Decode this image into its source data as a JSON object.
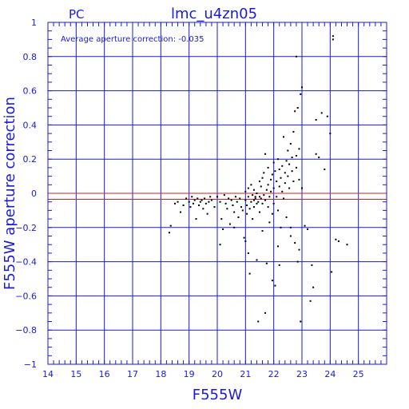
{
  "colors": {
    "axis": "#1a1adc",
    "points": "#000000",
    "zero_line": "#d02020",
    "average_line": "#d02020",
    "background": "#ffffff"
  },
  "chart_data": {
    "type": "scatter",
    "title": "lmc_u4zn05",
    "corner_label": "PC",
    "annotation": "Average aperture correction: -0.035",
    "xlabel": "F555W",
    "ylabel": "F555W aperture correction",
    "xlim": [
      14,
      26
    ],
    "ylim": [
      -1,
      1
    ],
    "x_ticks": [
      14,
      15,
      16,
      17,
      18,
      19,
      20,
      21,
      22,
      23,
      24,
      25
    ],
    "y_ticks": [
      -1,
      -0.8,
      -0.6,
      -0.4,
      -0.2,
      0,
      0.2,
      0.4,
      0.6,
      0.8,
      1
    ],
    "x_tick_labels": [
      "14",
      "15",
      "16",
      "17",
      "18",
      "19",
      "20",
      "21",
      "22",
      "23",
      "24",
      "25"
    ],
    "y_tick_labels": [
      "−1",
      "−0.8",
      "−0.6",
      "−0.4",
      "−0.2",
      "0",
      "0.2",
      "0.4",
      "0.6",
      "0.8",
      "1"
    ],
    "grid": true,
    "reference_lines": [
      {
        "y": 0,
        "style": "solid"
      },
      {
        "y": -0.035,
        "style": "solid"
      }
    ],
    "points": [
      [
        18.3,
        -0.23
      ],
      [
        18.35,
        -0.19
      ],
      [
        18.5,
        -0.06
      ],
      [
        18.6,
        -0.05
      ],
      [
        18.7,
        -0.11
      ],
      [
        18.8,
        -0.07
      ],
      [
        18.9,
        -0.03
      ],
      [
        19.0,
        -0.05
      ],
      [
        19.05,
        -0.08
      ],
      [
        19.1,
        -0.02
      ],
      [
        19.15,
        -0.06
      ],
      [
        19.2,
        -0.04
      ],
      [
        19.25,
        -0.15
      ],
      [
        19.3,
        -0.03
      ],
      [
        19.35,
        -0.07
      ],
      [
        19.4,
        -0.05
      ],
      [
        19.45,
        -0.04
      ],
      [
        19.5,
        -0.09
      ],
      [
        19.55,
        -0.03
      ],
      [
        19.6,
        -0.06
      ],
      [
        19.65,
        -0.12
      ],
      [
        19.7,
        -0.05
      ],
      [
        19.75,
        -0.02
      ],
      [
        19.8,
        -0.04
      ],
      [
        19.9,
        -0.08
      ],
      [
        20.0,
        -0.02
      ],
      [
        20.1,
        -0.05
      ],
      [
        20.15,
        -0.15
      ],
      [
        20.2,
        -0.21
      ],
      [
        20.25,
        -0.01
      ],
      [
        20.3,
        -0.06
      ],
      [
        20.35,
        -0.09
      ],
      [
        20.4,
        -0.03
      ],
      [
        20.45,
        -0.18
      ],
      [
        20.5,
        -0.04
      ],
      [
        20.55,
        -0.07
      ],
      [
        20.6,
        -0.11
      ],
      [
        20.65,
        -0.02
      ],
      [
        20.7,
        -0.05
      ],
      [
        20.75,
        -0.14
      ],
      [
        20.8,
        -0.03
      ],
      [
        20.85,
        -0.08
      ],
      [
        20.9,
        -0.1
      ],
      [
        20.95,
        -0.26
      ],
      [
        21.0,
        -0.04
      ],
      [
        21.0,
        0.01
      ],
      [
        21.05,
        -0.07
      ],
      [
        21.05,
        -0.12
      ],
      [
        21.1,
        0.03
      ],
      [
        21.1,
        -0.02
      ],
      [
        21.15,
        -0.09
      ],
      [
        21.15,
        -0.47
      ],
      [
        21.2,
        -0.05
      ],
      [
        21.2,
        0.05
      ],
      [
        21.25,
        -0.01
      ],
      [
        21.25,
        -0.15
      ],
      [
        21.3,
        -0.04
      ],
      [
        21.3,
        -0.08
      ],
      [
        21.3,
        0.02
      ],
      [
        21.35,
        -0.02
      ],
      [
        21.35,
        -0.03
      ],
      [
        21.4,
        -0.06
      ],
      [
        21.4,
        0.0
      ],
      [
        21.45,
        -0.05
      ],
      [
        21.45,
        -0.75
      ],
      [
        21.5,
        0.07
      ],
      [
        21.5,
        -0.02
      ],
      [
        21.5,
        -0.11
      ],
      [
        21.55,
        -0.03
      ],
      [
        21.55,
        0.04
      ],
      [
        21.6,
        -0.22
      ],
      [
        21.6,
        -0.06
      ],
      [
        21.6,
        0.09
      ],
      [
        21.65,
        -0.01
      ],
      [
        21.65,
        0.12
      ],
      [
        21.7,
        -0.04
      ],
      [
        21.7,
        0.23
      ],
      [
        21.75,
        -0.41
      ],
      [
        21.75,
        0.02
      ],
      [
        21.8,
        -0.08
      ],
      [
        21.8,
        0.05
      ],
      [
        21.8,
        0.15
      ],
      [
        21.85,
        -0.02
      ],
      [
        21.85,
        -0.17
      ],
      [
        21.9,
        0.08
      ],
      [
        21.9,
        0.01
      ],
      [
        21.95,
        -0.12
      ],
      [
        21.95,
        0.11
      ],
      [
        22.0,
        -0.06
      ],
      [
        22.0,
        0.03
      ],
      [
        22.0,
        0.18
      ],
      [
        22.05,
        -0.54
      ],
      [
        22.05,
        0.13
      ],
      [
        22.1,
        -0.02
      ],
      [
        22.1,
        0.07
      ],
      [
        22.15,
        0.2
      ],
      [
        22.15,
        -0.1
      ],
      [
        22.2,
        0.04
      ],
      [
        22.2,
        0.14
      ],
      [
        22.25,
        -0.2
      ],
      [
        22.25,
        0.09
      ],
      [
        22.3,
        0.01
      ],
      [
        22.3,
        0.16
      ],
      [
        22.35,
        0.33
      ],
      [
        22.35,
        -0.03
      ],
      [
        22.4,
        0.06
      ],
      [
        22.4,
        0.12
      ],
      [
        22.45,
        0.19
      ],
      [
        22.45,
        -0.14
      ],
      [
        22.5,
        0.25
      ],
      [
        22.5,
        0.1
      ],
      [
        22.55,
        0.03
      ],
      [
        22.55,
        0.17
      ],
      [
        22.6,
        0.29
      ],
      [
        22.6,
        -0.25
      ],
      [
        22.65,
        0.13
      ],
      [
        22.65,
        0.21
      ],
      [
        22.7,
        0.36
      ],
      [
        22.7,
        0.07
      ],
      [
        22.75,
        0.48
      ],
      [
        22.75,
        -0.29
      ],
      [
        22.8,
        0.22
      ],
      [
        22.8,
        0.15
      ],
      [
        22.85,
        0.5
      ],
      [
        22.85,
        -0.4
      ],
      [
        22.9,
        0.26
      ],
      [
        22.9,
        0.08
      ],
      [
        22.95,
        0.58
      ],
      [
        22.95,
        -0.75
      ],
      [
        23.0,
        0.62
      ],
      [
        23.0,
        0.03
      ],
      [
        23.1,
        -0.19
      ],
      [
        23.2,
        -0.21
      ],
      [
        23.3,
        -0.63
      ],
      [
        23.4,
        -0.55
      ],
      [
        23.5,
        0.43
      ],
      [
        23.6,
        0.21
      ],
      [
        23.7,
        0.47
      ],
      [
        23.8,
        0.14
      ],
      [
        24.0,
        0.35
      ],
      [
        24.05,
        -0.46
      ],
      [
        24.1,
        0.9
      ],
      [
        24.1,
        0.92
      ],
      [
        24.2,
        -0.27
      ],
      [
        24.3,
        -0.28
      ],
      [
        24.6,
        -0.3
      ],
      [
        21.0,
        -0.28
      ],
      [
        21.1,
        -0.35
      ],
      [
        21.4,
        -0.39
      ],
      [
        21.7,
        -0.7
      ],
      [
        21.95,
        -0.51
      ],
      [
        22.15,
        -0.31
      ],
      [
        22.2,
        -0.42
      ],
      [
        22.6,
        -0.2
      ],
      [
        22.9,
        -0.33
      ],
      [
        23.35,
        -0.42
      ],
      [
        23.5,
        0.23
      ],
      [
        23.9,
        0.45
      ],
      [
        20.1,
        -0.3
      ],
      [
        20.6,
        -0.2
      ],
      [
        22.8,
        0.8
      ]
    ]
  }
}
